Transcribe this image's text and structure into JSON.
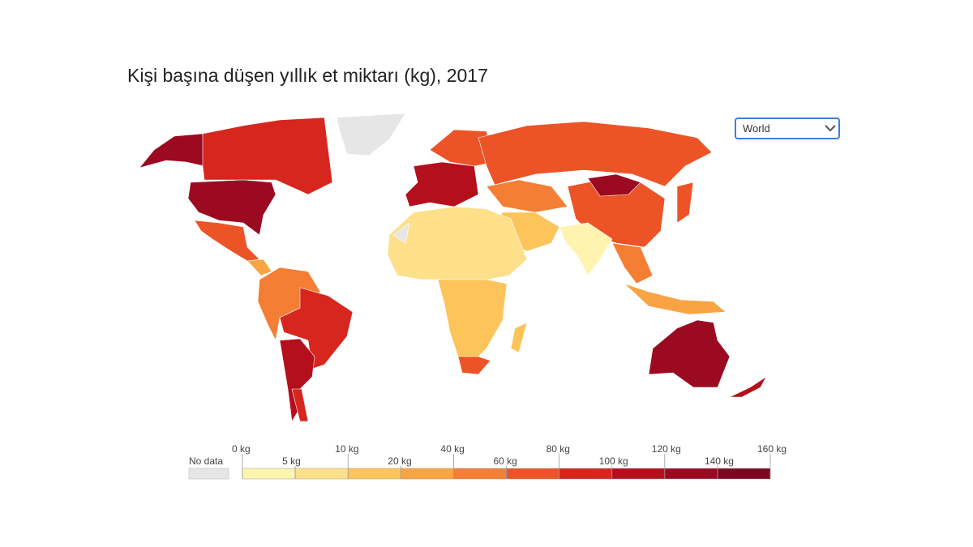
{
  "header": {
    "title": "Kişi başına düşen yıllık et miktarı (kg), 2017"
  },
  "selector": {
    "label": "World"
  },
  "legend": {
    "no_data": "No data",
    "no_data_color": "#e6e6e6",
    "ticks": [
      {
        "value": 0,
        "label": "0 kg"
      },
      {
        "value": 5,
        "label": "5 kg"
      },
      {
        "value": 10,
        "label": "10 kg"
      },
      {
        "value": 20,
        "label": "20 kg"
      },
      {
        "value": 40,
        "label": "40 kg"
      },
      {
        "value": 60,
        "label": "60 kg"
      },
      {
        "value": 80,
        "label": "80 kg"
      },
      {
        "value": 100,
        "label": "100 kg"
      },
      {
        "value": 120,
        "label": "120 kg"
      },
      {
        "value": 140,
        "label": "140 kg"
      },
      {
        "value": 160,
        "label": "160 kg"
      }
    ],
    "colors": [
      "#fff3b0",
      "#fee08b",
      "#fdc45b",
      "#f9a443",
      "#f47e34",
      "#ec5428",
      "#d7261e",
      "#b50f1e",
      "#9b0a20",
      "#7e0720"
    ]
  }
}
